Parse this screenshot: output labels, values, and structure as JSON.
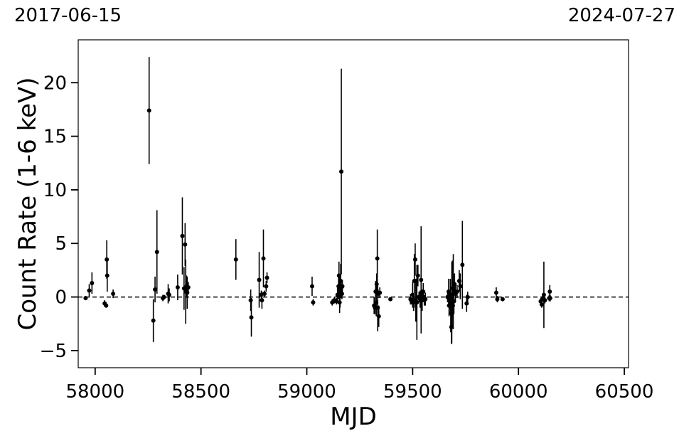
{
  "header": {
    "start_date": "2017-06-15",
    "end_date": "2024-07-27"
  },
  "chart_data": {
    "type": "scatter",
    "title": "",
    "xlabel": "MJD",
    "ylabel": "Count Rate (1-6 keV)",
    "xlim": [
      57920,
      60520
    ],
    "ylim": [
      -6.6,
      24
    ],
    "xticks": [
      58000,
      58500,
      59000,
      59500,
      60000,
      60500
    ],
    "xtick_labels": [
      "58000",
      "58500",
      "59000",
      "59500",
      "60000",
      "60500"
    ],
    "yticks": [
      -5,
      0,
      5,
      10,
      15,
      20
    ],
    "ytick_labels": [
      "−5",
      "0",
      "5",
      "10",
      "15",
      "20"
    ],
    "reference_line": {
      "y": 0,
      "style": "dashed"
    },
    "grid": false,
    "marker_color": "#000000",
    "series": [
      {
        "points": [
          {
            "x": 57955,
            "y": -0.1,
            "err": 0.2
          },
          {
            "x": 57972,
            "y": 0.6,
            "err": 0.6
          },
          {
            "x": 57985,
            "y": 1.3,
            "err": 1.0
          },
          {
            "x": 58045,
            "y": -0.6,
            "err": 0.3
          },
          {
            "x": 58052,
            "y": -0.8,
            "err": 0.2
          },
          {
            "x": 58055,
            "y": 3.5,
            "err": 1.8
          },
          {
            "x": 58057,
            "y": 2.0,
            "err": 1.5
          },
          {
            "x": 58085,
            "y": 0.3,
            "err": 0.4
          },
          {
            "x": 58255,
            "y": 17.4,
            "err": 5.0
          },
          {
            "x": 58275,
            "y": -2.2,
            "err": 2.0
          },
          {
            "x": 58283,
            "y": 0.7,
            "err": 1.2
          },
          {
            "x": 58292,
            "y": 4.2,
            "err": 3.9
          },
          {
            "x": 58320,
            "y": -0.1,
            "err": 0.3
          },
          {
            "x": 58325,
            "y": 0.0,
            "err": 0.2
          },
          {
            "x": 58345,
            "y": 0.3,
            "err": 0.9
          },
          {
            "x": 58350,
            "y": 0.2,
            "err": 0.6
          },
          {
            "x": 58390,
            "y": 0.9,
            "err": 1.2
          },
          {
            "x": 58412,
            "y": 5.7,
            "err": 3.6
          },
          {
            "x": 58420,
            "y": 0.8,
            "err": 2.0
          },
          {
            "x": 58425,
            "y": 4.9,
            "err": 2.0
          },
          {
            "x": 58428,
            "y": 0.5,
            "err": 3.0
          },
          {
            "x": 58432,
            "y": 1.0,
            "err": 1.0
          },
          {
            "x": 58435,
            "y": 0.4,
            "err": 1.5
          },
          {
            "x": 58440,
            "y": 0.9,
            "err": 0.5
          },
          {
            "x": 58665,
            "y": 3.5,
            "err": 1.9
          },
          {
            "x": 58735,
            "y": -0.3,
            "err": 1.0
          },
          {
            "x": 58738,
            "y": -1.9,
            "err": 1.8
          },
          {
            "x": 58775,
            "y": 1.6,
            "err": 2.6
          },
          {
            "x": 58785,
            "y": 0.2,
            "err": 0.4
          },
          {
            "x": 58788,
            "y": -0.3,
            "err": 0.8
          },
          {
            "x": 58795,
            "y": 3.6,
            "err": 2.7
          },
          {
            "x": 58800,
            "y": 0.3,
            "err": 0.3
          },
          {
            "x": 58808,
            "y": 1.0,
            "err": 0.5
          },
          {
            "x": 58812,
            "y": 1.8,
            "err": 0.5
          },
          {
            "x": 59025,
            "y": 1.0,
            "err": 0.9
          },
          {
            "x": 59030,
            "y": -0.5,
            "err": 0.3
          },
          {
            "x": 59120,
            "y": -0.5,
            "err": 0.3
          },
          {
            "x": 59130,
            "y": -0.3,
            "err": 0.3
          },
          {
            "x": 59140,
            "y": -0.4,
            "err": 0.3
          },
          {
            "x": 59145,
            "y": 0.2,
            "err": 0.8
          },
          {
            "x": 59150,
            "y": 1.0,
            "err": 1.2
          },
          {
            "x": 59152,
            "y": 2.0,
            "err": 1.3
          },
          {
            "x": 59155,
            "y": -0.5,
            "err": 1.0
          },
          {
            "x": 59157,
            "y": 0.5,
            "err": 1.5
          },
          {
            "x": 59160,
            "y": 1.5,
            "err": 1.6
          },
          {
            "x": 59162,
            "y": 0.8,
            "err": 0.8
          },
          {
            "x": 59163,
            "y": 11.7,
            "err": 9.6
          },
          {
            "x": 59166,
            "y": 0.3,
            "err": 0.5
          },
          {
            "x": 59168,
            "y": 1.0,
            "err": 0.6
          },
          {
            "x": 59318,
            "y": -0.8,
            "err": 0.8
          },
          {
            "x": 59322,
            "y": -1.0,
            "err": 0.6
          },
          {
            "x": 59325,
            "y": 0.5,
            "err": 1.0
          },
          {
            "x": 59328,
            "y": -0.5,
            "err": 1.3
          },
          {
            "x": 59330,
            "y": 1.2,
            "err": 1.0
          },
          {
            "x": 59333,
            "y": 3.6,
            "err": 2.7
          },
          {
            "x": 59335,
            "y": -1.0,
            "err": 2.2
          },
          {
            "x": 59337,
            "y": 0.3,
            "err": 0.4
          },
          {
            "x": 59340,
            "y": -1.8,
            "err": 1.0
          },
          {
            "x": 59345,
            "y": 0.4,
            "err": 0.5
          },
          {
            "x": 59395,
            "y": -0.2,
            "err": 0.2
          },
          {
            "x": 59490,
            "y": -0.2,
            "err": 0.5
          },
          {
            "x": 59495,
            "y": -0.4,
            "err": 0.3
          },
          {
            "x": 59500,
            "y": 0.2,
            "err": 1.2
          },
          {
            "x": 59505,
            "y": -0.5,
            "err": 0.8
          },
          {
            "x": 59508,
            "y": 1.5,
            "err": 2.5
          },
          {
            "x": 59512,
            "y": 3.5,
            "err": 1.5
          },
          {
            "x": 59515,
            "y": -0.3,
            "err": 2.0
          },
          {
            "x": 59520,
            "y": -0.5,
            "err": 3.5
          },
          {
            "x": 59525,
            "y": 2.0,
            "err": 1.0
          },
          {
            "x": 59530,
            "y": 0.0,
            "err": 0.5
          },
          {
            "x": 59535,
            "y": -0.2,
            "err": 0.8
          },
          {
            "x": 59540,
            "y": 1.6,
            "err": 5.0
          },
          {
            "x": 59545,
            "y": -0.3,
            "err": 1.0
          },
          {
            "x": 59550,
            "y": 0.5,
            "err": 0.8
          },
          {
            "x": 59555,
            "y": -0.3,
            "err": 0.5
          },
          {
            "x": 59560,
            "y": -0.2,
            "err": 0.6
          },
          {
            "x": 59665,
            "y": 0.0,
            "err": 0.5
          },
          {
            "x": 59670,
            "y": 0.5,
            "err": 1.2
          },
          {
            "x": 59672,
            "y": -0.8,
            "err": 1.0
          },
          {
            "x": 59675,
            "y": -0.3,
            "err": 0.8
          },
          {
            "x": 59678,
            "y": 0.2,
            "err": 1.5
          },
          {
            "x": 59680,
            "y": -1.5,
            "err": 1.8
          },
          {
            "x": 59683,
            "y": -2.8,
            "err": 1.6
          },
          {
            "x": 59685,
            "y": -0.5,
            "err": 3.8
          },
          {
            "x": 59688,
            "y": 0.8,
            "err": 2.6
          },
          {
            "x": 59690,
            "y": -0.8,
            "err": 2.0
          },
          {
            "x": 59692,
            "y": 0.5,
            "err": 3.5
          },
          {
            "x": 59695,
            "y": -0.4,
            "err": 1.2
          },
          {
            "x": 59698,
            "y": 1.2,
            "err": 1.0
          },
          {
            "x": 59702,
            "y": 0.3,
            "err": 0.8
          },
          {
            "x": 59710,
            "y": 0.5,
            "err": 0.6
          },
          {
            "x": 59720,
            "y": 1.5,
            "err": 1.0
          },
          {
            "x": 59725,
            "y": 1.0,
            "err": 1.2
          },
          {
            "x": 59735,
            "y": 3.0,
            "err": 4.1
          },
          {
            "x": 59755,
            "y": -0.6,
            "err": 0.8
          },
          {
            "x": 59760,
            "y": 0.0,
            "err": 0.5
          },
          {
            "x": 59895,
            "y": 0.4,
            "err": 0.5
          },
          {
            "x": 59900,
            "y": -0.2,
            "err": 0.3
          },
          {
            "x": 59925,
            "y": -0.2,
            "err": 0.2
          },
          {
            "x": 60105,
            "y": -0.4,
            "err": 0.3
          },
          {
            "x": 60110,
            "y": -0.7,
            "err": 0.3
          },
          {
            "x": 60115,
            "y": -0.1,
            "err": 0.3
          },
          {
            "x": 60120,
            "y": 0.2,
            "err": 3.1
          },
          {
            "x": 60125,
            "y": -0.3,
            "err": 0.3
          },
          {
            "x": 60145,
            "y": -0.1,
            "err": 0.3
          },
          {
            "x": 60148,
            "y": 0.5,
            "err": 0.6
          },
          {
            "x": 60150,
            "y": -0.1,
            "err": 0.3
          }
        ]
      }
    ]
  }
}
